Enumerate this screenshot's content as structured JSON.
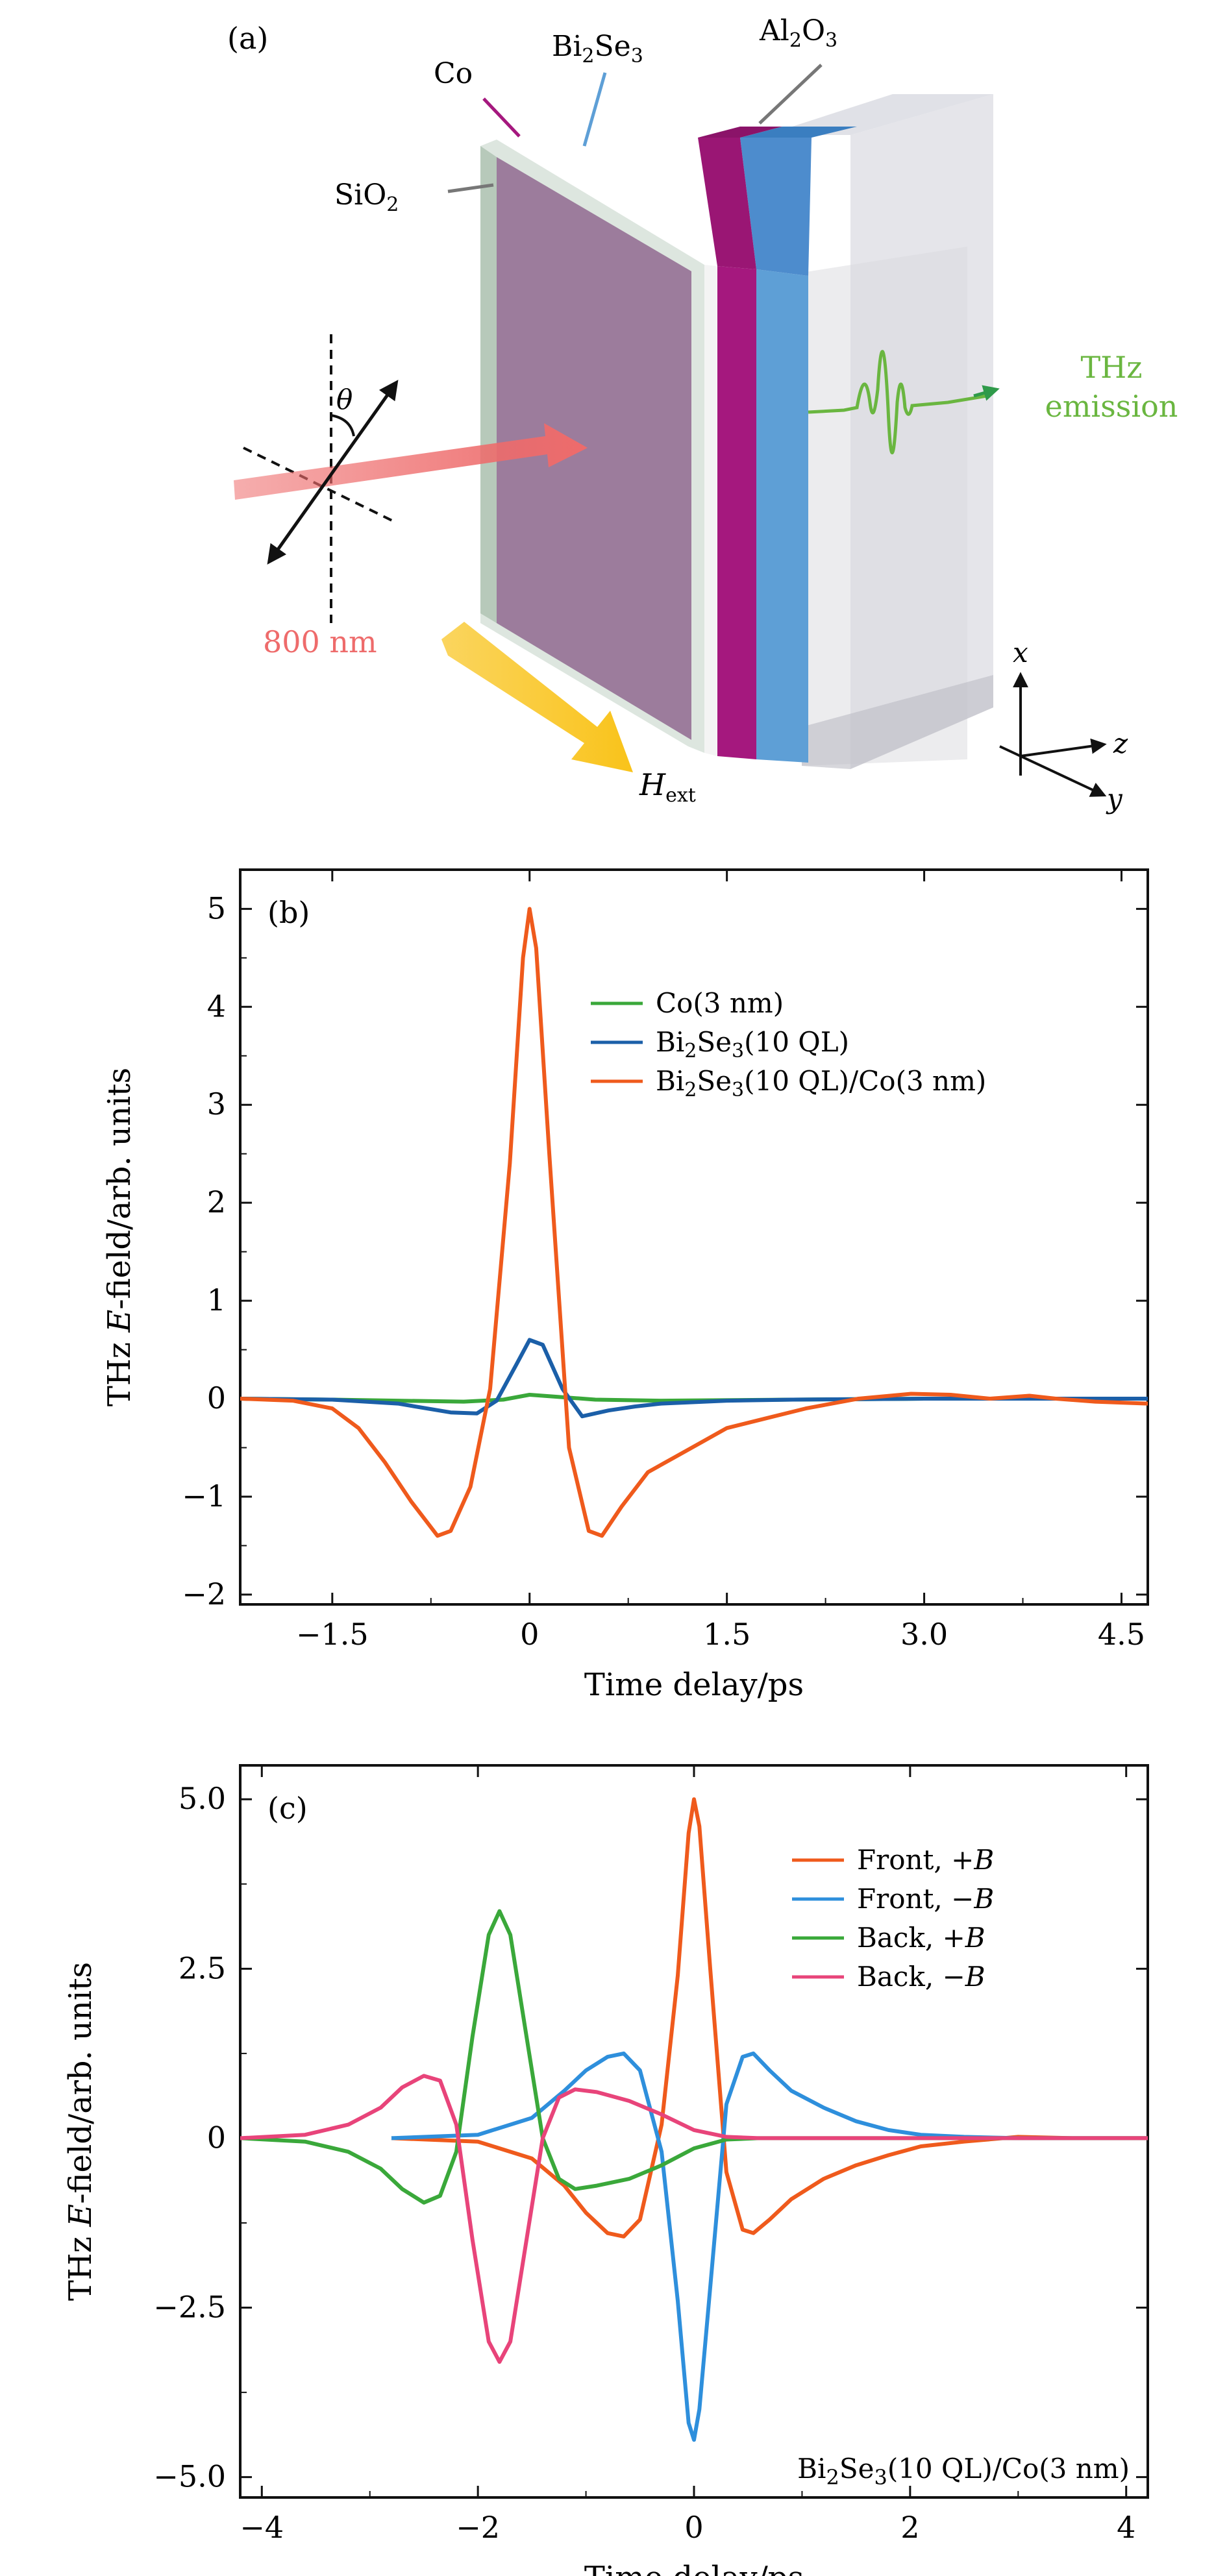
{
  "panel_a": {
    "label": "(a)",
    "layers": {
      "co": "Co",
      "bi2se3_base": "Bi",
      "bi2se3_sub1": "2",
      "bi2se3_mid": "Se",
      "bi2se3_sub2": "3",
      "al2o3_base": "Al",
      "al2o3_sub1": "2",
      "al2o3_mid": "O",
      "al2o3_sub2": "3",
      "sio2_base": "SiO",
      "sio2_sub": "2"
    },
    "laser_label": "800 nm",
    "theta_label": "θ",
    "thz_line1": "THz",
    "thz_line2": "emission",
    "field_base": "H",
    "field_sub": "ext",
    "axis_x": "x",
    "axis_y": "y",
    "axis_z": "z",
    "colors": {
      "co": "#a5187e",
      "bi2se3": "#5e9fd6",
      "sio2": "#d5ddd6",
      "al2o3": "#c7c8d3",
      "laser": "#ee6b6b",
      "thz": "#6ab640",
      "field_arrow": "#f9c31a",
      "face": "#9c7c9c"
    }
  },
  "chart_data": [
    {
      "type": "line",
      "panel_label": "(b)",
      "xlabel": "Time delay/ps",
      "ylabel_parts": [
        "THz ",
        "E",
        "-field/arb. units"
      ],
      "xlim": [
        -2.2,
        4.7
      ],
      "ylim": [
        -2.1,
        5.4
      ],
      "xticks": [
        -1.5,
        0,
        1.5,
        3.0,
        4.5
      ],
      "xtick_labels": [
        "−1.5",
        "0",
        "1.5",
        "3.0",
        "4.5"
      ],
      "yticks": [
        -2,
        -1,
        0,
        1,
        2,
        3,
        4,
        5
      ],
      "ytick_labels": [
        "−2",
        "−1",
        "0",
        "1",
        "2",
        "3",
        "4",
        "5"
      ],
      "grid": false,
      "legend_position": "upper-right",
      "series": [
        {
          "name": "Co(3 nm)",
          "legend_parts": [
            "Co(3 nm)"
          ],
          "color": "#3aa83a",
          "x": [
            -2.2,
            -1.5,
            -1.0,
            -0.5,
            -0.2,
            0.0,
            0.2,
            0.5,
            1.0,
            2.0,
            3.0,
            4.0,
            4.7
          ],
          "y": [
            0,
            -0.01,
            -0.02,
            -0.03,
            -0.01,
            0.04,
            0.02,
            -0.01,
            -0.02,
            -0.01,
            0,
            0,
            0
          ]
        },
        {
          "name": "Bi2Se3(10 QL)",
          "legend_parts": [
            "Bi",
            "2",
            "Se",
            "3",
            "(10 QL)"
          ],
          "color": "#1b5fa8",
          "x": [
            -2.2,
            -1.5,
            -1.0,
            -0.6,
            -0.4,
            -0.25,
            -0.1,
            0.0,
            0.1,
            0.25,
            0.4,
            0.6,
            0.8,
            1.0,
            1.5,
            2.0,
            3.0,
            4.0,
            4.7
          ],
          "y": [
            0,
            -0.01,
            -0.05,
            -0.14,
            -0.15,
            -0.02,
            0.35,
            0.6,
            0.55,
            0.1,
            -0.18,
            -0.12,
            -0.08,
            -0.05,
            -0.02,
            -0.01,
            0,
            0,
            0
          ]
        },
        {
          "name": "Bi2Se3(10 QL)/Co(3 nm)",
          "legend_parts": [
            "Bi",
            "2",
            "Se",
            "3",
            "(10 QL)/Co(3 nm)"
          ],
          "color": "#ef5a1c",
          "x": [
            -2.2,
            -1.8,
            -1.5,
            -1.3,
            -1.1,
            -0.9,
            -0.7,
            -0.6,
            -0.45,
            -0.3,
            -0.15,
            -0.05,
            0.0,
            0.05,
            0.15,
            0.3,
            0.45,
            0.55,
            0.7,
            0.9,
            1.1,
            1.3,
            1.5,
            1.8,
            2.1,
            2.5,
            2.9,
            3.2,
            3.5,
            3.8,
            4.0,
            4.3,
            4.7
          ],
          "y": [
            0,
            -0.02,
            -0.1,
            -0.3,
            -0.65,
            -1.05,
            -1.4,
            -1.35,
            -0.9,
            0.1,
            2.4,
            4.5,
            5.0,
            4.6,
            2.5,
            -0.5,
            -1.35,
            -1.4,
            -1.1,
            -0.75,
            -0.6,
            -0.45,
            -0.3,
            -0.2,
            -0.1,
            0.0,
            0.05,
            0.04,
            0.0,
            0.03,
            0.0,
            -0.03,
            -0.05
          ]
        }
      ]
    },
    {
      "type": "line",
      "panel_label": "(c)",
      "xlabel": "Time delay/ps",
      "ylabel_parts": [
        "THz ",
        "E",
        "-field/arb. units"
      ],
      "xlim": [
        -4.2,
        4.2
      ],
      "ylim": [
        -5.3,
        5.5
      ],
      "xticks": [
        -4,
        -2,
        0,
        2,
        4
      ],
      "xtick_labels": [
        "−4",
        "−2",
        "0",
        "2",
        "4"
      ],
      "yticks": [
        -5.0,
        -2.5,
        0,
        2.5,
        5.0
      ],
      "ytick_labels": [
        "−5.0",
        "−2.5",
        "0",
        "2.5",
        "5.0"
      ],
      "grid": false,
      "legend_position": "upper-right",
      "annotation_parts": [
        "Bi",
        "2",
        "Se",
        "3",
        "(10 QL)/Co(3 nm)"
      ],
      "series": [
        {
          "name": "Front, +B",
          "legend_parts": [
            "Front, +",
            "B"
          ],
          "color": "#ef5a1c",
          "x": [
            -2.8,
            -2.0,
            -1.5,
            -1.2,
            -1.0,
            -0.8,
            -0.65,
            -0.5,
            -0.3,
            -0.15,
            -0.05,
            0.0,
            0.05,
            0.15,
            0.3,
            0.45,
            0.55,
            0.7,
            0.9,
            1.2,
            1.5,
            1.8,
            2.1,
            2.5,
            3.0,
            3.5,
            4.2
          ],
          "y": [
            0,
            -0.05,
            -0.3,
            -0.7,
            -1.1,
            -1.4,
            -1.45,
            -1.2,
            0.2,
            2.4,
            4.5,
            5.0,
            4.6,
            2.5,
            -0.5,
            -1.35,
            -1.4,
            -1.2,
            -0.9,
            -0.6,
            -0.4,
            -0.25,
            -0.12,
            -0.05,
            0.02,
            0,
            0
          ]
        },
        {
          "name": "Front, −B",
          "legend_parts": [
            "Front, −",
            "B"
          ],
          "color": "#2e8fdc",
          "x": [
            -2.8,
            -2.0,
            -1.5,
            -1.2,
            -1.0,
            -0.8,
            -0.65,
            -0.5,
            -0.3,
            -0.15,
            -0.05,
            0.0,
            0.05,
            0.15,
            0.3,
            0.45,
            0.55,
            0.7,
            0.9,
            1.2,
            1.5,
            1.8,
            2.1,
            2.5,
            3.0,
            3.5,
            4.2
          ],
          "y": [
            0,
            0.05,
            0.3,
            0.7,
            1.0,
            1.2,
            1.25,
            1.0,
            -0.2,
            -2.4,
            -4.2,
            -4.45,
            -4.0,
            -2.2,
            0.5,
            1.2,
            1.25,
            1.0,
            0.7,
            0.45,
            0.25,
            0.12,
            0.05,
            0.02,
            0,
            0,
            0
          ]
        },
        {
          "name": "Back, +B",
          "legend_parts": [
            "Back, +",
            "B"
          ],
          "color": "#3aa83a",
          "x": [
            -4.2,
            -3.6,
            -3.2,
            -2.9,
            -2.7,
            -2.5,
            -2.35,
            -2.2,
            -2.05,
            -1.9,
            -1.8,
            -1.7,
            -1.55,
            -1.4,
            -1.25,
            -1.1,
            -0.9,
            -0.6,
            -0.3,
            0.0,
            0.3,
            0.6,
            1.0,
            2.0,
            3.0,
            4.2
          ],
          "y": [
            0,
            -0.05,
            -0.2,
            -0.45,
            -0.75,
            -0.95,
            -0.85,
            -0.2,
            1.5,
            3.0,
            3.35,
            3.0,
            1.5,
            0.0,
            -0.6,
            -0.75,
            -0.7,
            -0.6,
            -0.4,
            -0.15,
            -0.02,
            0,
            0,
            0,
            0,
            0
          ]
        },
        {
          "name": "Back, −B",
          "legend_parts": [
            "Back, −",
            "B"
          ],
          "color": "#e8447a",
          "x": [
            -4.2,
            -3.6,
            -3.2,
            -2.9,
            -2.7,
            -2.5,
            -2.35,
            -2.2,
            -2.05,
            -1.9,
            -1.8,
            -1.7,
            -1.55,
            -1.4,
            -1.25,
            -1.1,
            -0.9,
            -0.6,
            -0.3,
            0.0,
            0.3,
            0.6,
            1.0,
            2.0,
            3.0,
            4.2
          ],
          "y": [
            0,
            0.05,
            0.2,
            0.45,
            0.75,
            0.92,
            0.85,
            0.2,
            -1.5,
            -3.0,
            -3.3,
            -3.0,
            -1.5,
            0.0,
            0.6,
            0.72,
            0.68,
            0.55,
            0.35,
            0.12,
            0.02,
            0,
            0,
            0,
            0,
            0
          ]
        }
      ]
    }
  ]
}
